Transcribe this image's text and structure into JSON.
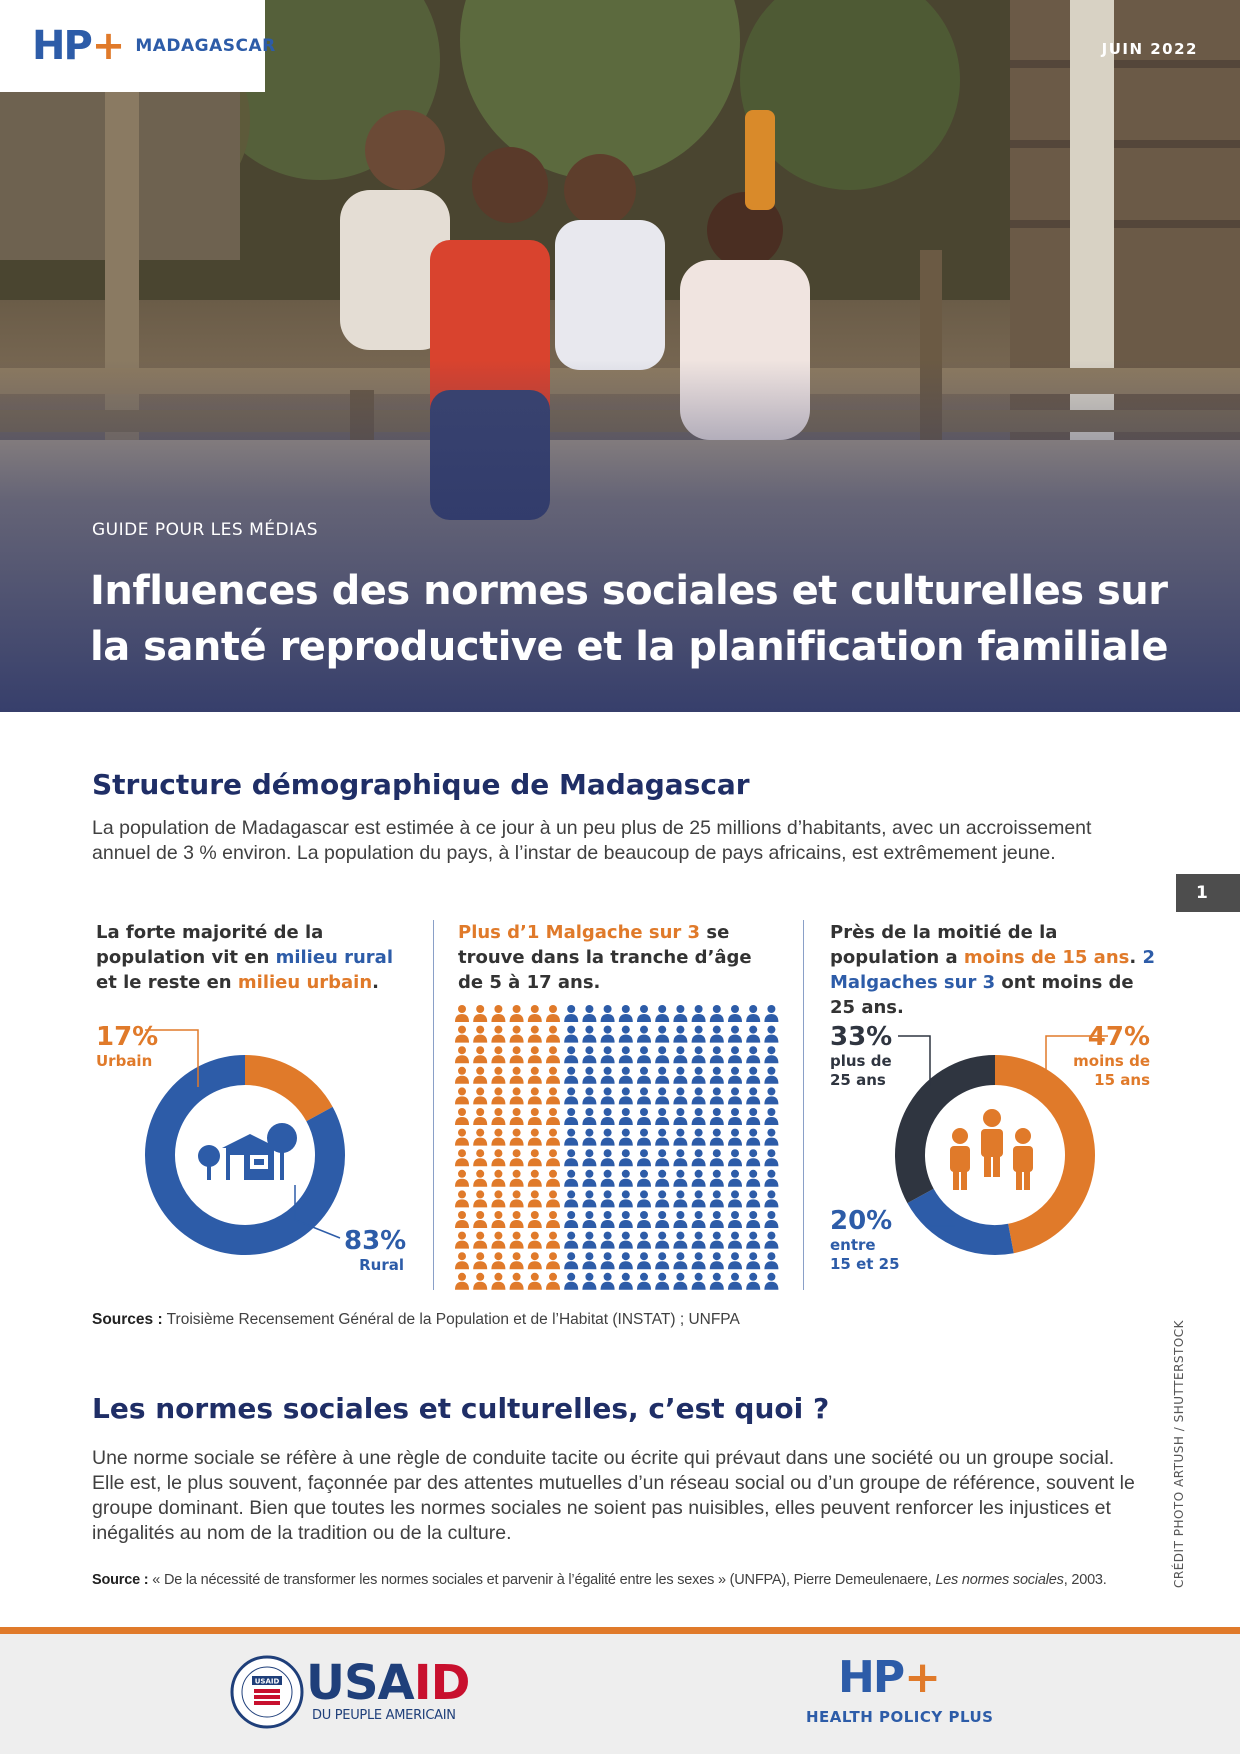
{
  "header": {
    "logo": {
      "mark": "HP",
      "plus": "+",
      "country": "MADAGASCAR"
    },
    "date": "JUIN 2022",
    "kicker": "GUIDE POUR LES MÉDIAS",
    "title_line1": "Influences des normes sociales et culturelles sur",
    "title_line2": "la santé reproductive et la planification familiale",
    "photo_credit": "CRÉDIT PHOTO ARTUSH / SHUTTERSTOCK"
  },
  "page_number": "1",
  "section1": {
    "heading": "Structure démographique de Madagascar",
    "body": "La population de Madagascar est estimée à ce jour à un peu plus de 25 millions d’habitants, avec un accroissement annuel de 3 % environ. La population du pays, à l’instar de beaucoup de pays africains, est extrêmement jeune.",
    "col1": {
      "t1": "La forte majorité de la population vit en ",
      "t2": "milieu rural",
      "t3": " et le reste en ",
      "t4": "milieu urbain",
      "t5": "."
    },
    "col2": {
      "t1": "Plus d’1 Malgache sur 3",
      "t2": " se trouve dans la tranche d’âge de 5 à 17 ans."
    },
    "col3": {
      "t1": "Près de la moitié de la population a ",
      "t2": "moins de 15 ans",
      "t3": ". ",
      "t4": "2 Malgaches sur 3",
      "t5": " ont moins de 25 ans."
    },
    "sources_label": "Sources :",
    "sources_text": " Troisième Recensement Général de la Population et de l’Habitat (INSTAT) ; UNFPA"
  },
  "chart_data": [
    {
      "type": "pie",
      "labels": [
        "Urbain",
        "Rural"
      ],
      "values": [
        17,
        83
      ],
      "value_labels": [
        "17%",
        "83%"
      ],
      "colors": [
        "#e07a2a",
        "#2d5ca8"
      ],
      "icon": "house-icon"
    },
    {
      "type": "pictogram",
      "total": 252,
      "highlighted_fraction": 0.333,
      "colors": [
        "#e07a2a",
        "#2d5ca8"
      ],
      "icon": "person-icon"
    },
    {
      "type": "pie",
      "labels": [
        "moins de 15 ans",
        "entre 15 et 25",
        "plus de 25 ans"
      ],
      "values": [
        47,
        20,
        33
      ],
      "value_labels": [
        "47%",
        "20%",
        "33%"
      ],
      "label_lines": [
        [
          "moins de",
          "15 ans"
        ],
        [
          "entre",
          "15 et 25"
        ],
        [
          "plus de",
          "25 ans"
        ]
      ],
      "colors": [
        "#e07a2a",
        "#2d5ca8",
        "#2f3540"
      ],
      "icon": "family-icon"
    }
  ],
  "section2": {
    "heading": "Les normes sociales et culturelles, c’est quoi ?",
    "body": "Une norme sociale se réfère à une règle de conduite tacite ou écrite qui prévaut dans une société ou un groupe social. Elle est, le plus souvent, façonnée par des attentes mutuelles d’un réseau social ou d’un groupe de référence, souvent le groupe dominant. Bien que toutes les normes sociales ne soient pas nuisibles, elles peuvent renforcer les injustices et inégalités au nom de la tradition ou de la culture.",
    "source_label": "Source :",
    "source_text": "  « De la nécessité de transformer les normes sociales et parvenir à l’égalité entre les sexes » (UNFPA), Pierre Demeulenaere, ",
    "source_italic": "Les normes sociales",
    "source_end": ", 2003."
  },
  "footer": {
    "usaid_main": "USA",
    "usaid_red": "ID",
    "usaid_sub": "DU PEUPLE AMERICAIN",
    "seal_text": "USAID",
    "hpp_mark": "HP",
    "hpp_plus": "+",
    "hpp_sub": "HEALTH POLICY PLUS"
  }
}
